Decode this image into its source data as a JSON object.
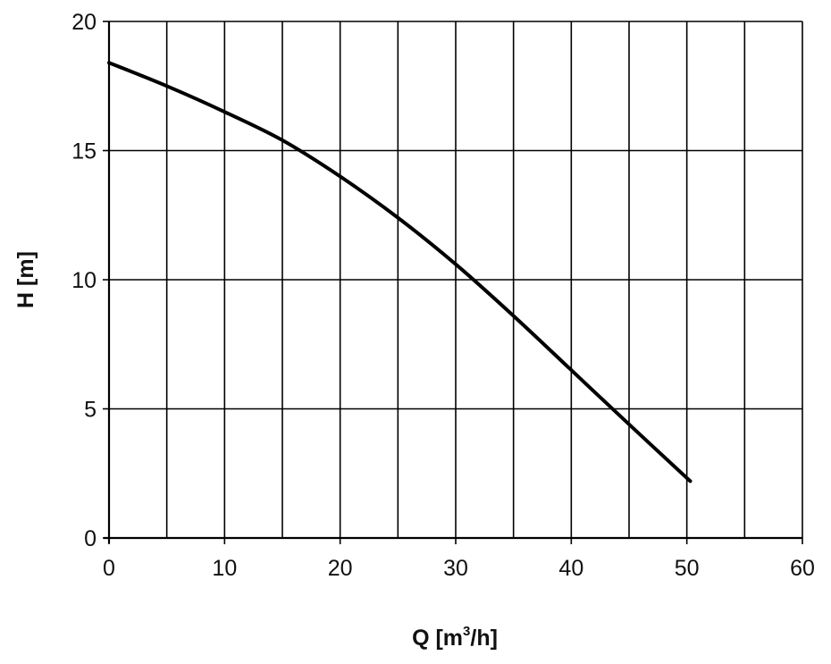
{
  "chart_data": {
    "type": "line",
    "title": "",
    "xlabel": "Q [m3/h]",
    "xlabel_parts": {
      "before_sup": "Q [m",
      "sup": "3",
      "after_sup": "/h]"
    },
    "ylabel": "H [m]",
    "xlim": [
      0,
      60
    ],
    "ylim": [
      0,
      20
    ],
    "xticks": [
      0,
      10,
      20,
      30,
      40,
      50,
      60
    ],
    "yticks": [
      0,
      5,
      10,
      15,
      20
    ],
    "x_gridlines": [
      0,
      5,
      10,
      15,
      20,
      25,
      30,
      35,
      40,
      45,
      50,
      55,
      60
    ],
    "y_gridlines": [
      0,
      5,
      10,
      15,
      20
    ],
    "grid": true,
    "legend": "none",
    "series": [
      {
        "x": [
          0,
          5,
          10,
          15,
          20,
          25,
          30,
          35,
          40,
          45,
          50.3
        ],
        "y": [
          18.4,
          17.5,
          16.5,
          15.4,
          14.0,
          12.4,
          10.6,
          8.6,
          6.5,
          4.4,
          2.2
        ]
      }
    ],
    "colors": {
      "line": "#000000",
      "grid": "#000000",
      "text": "#111111"
    }
  }
}
